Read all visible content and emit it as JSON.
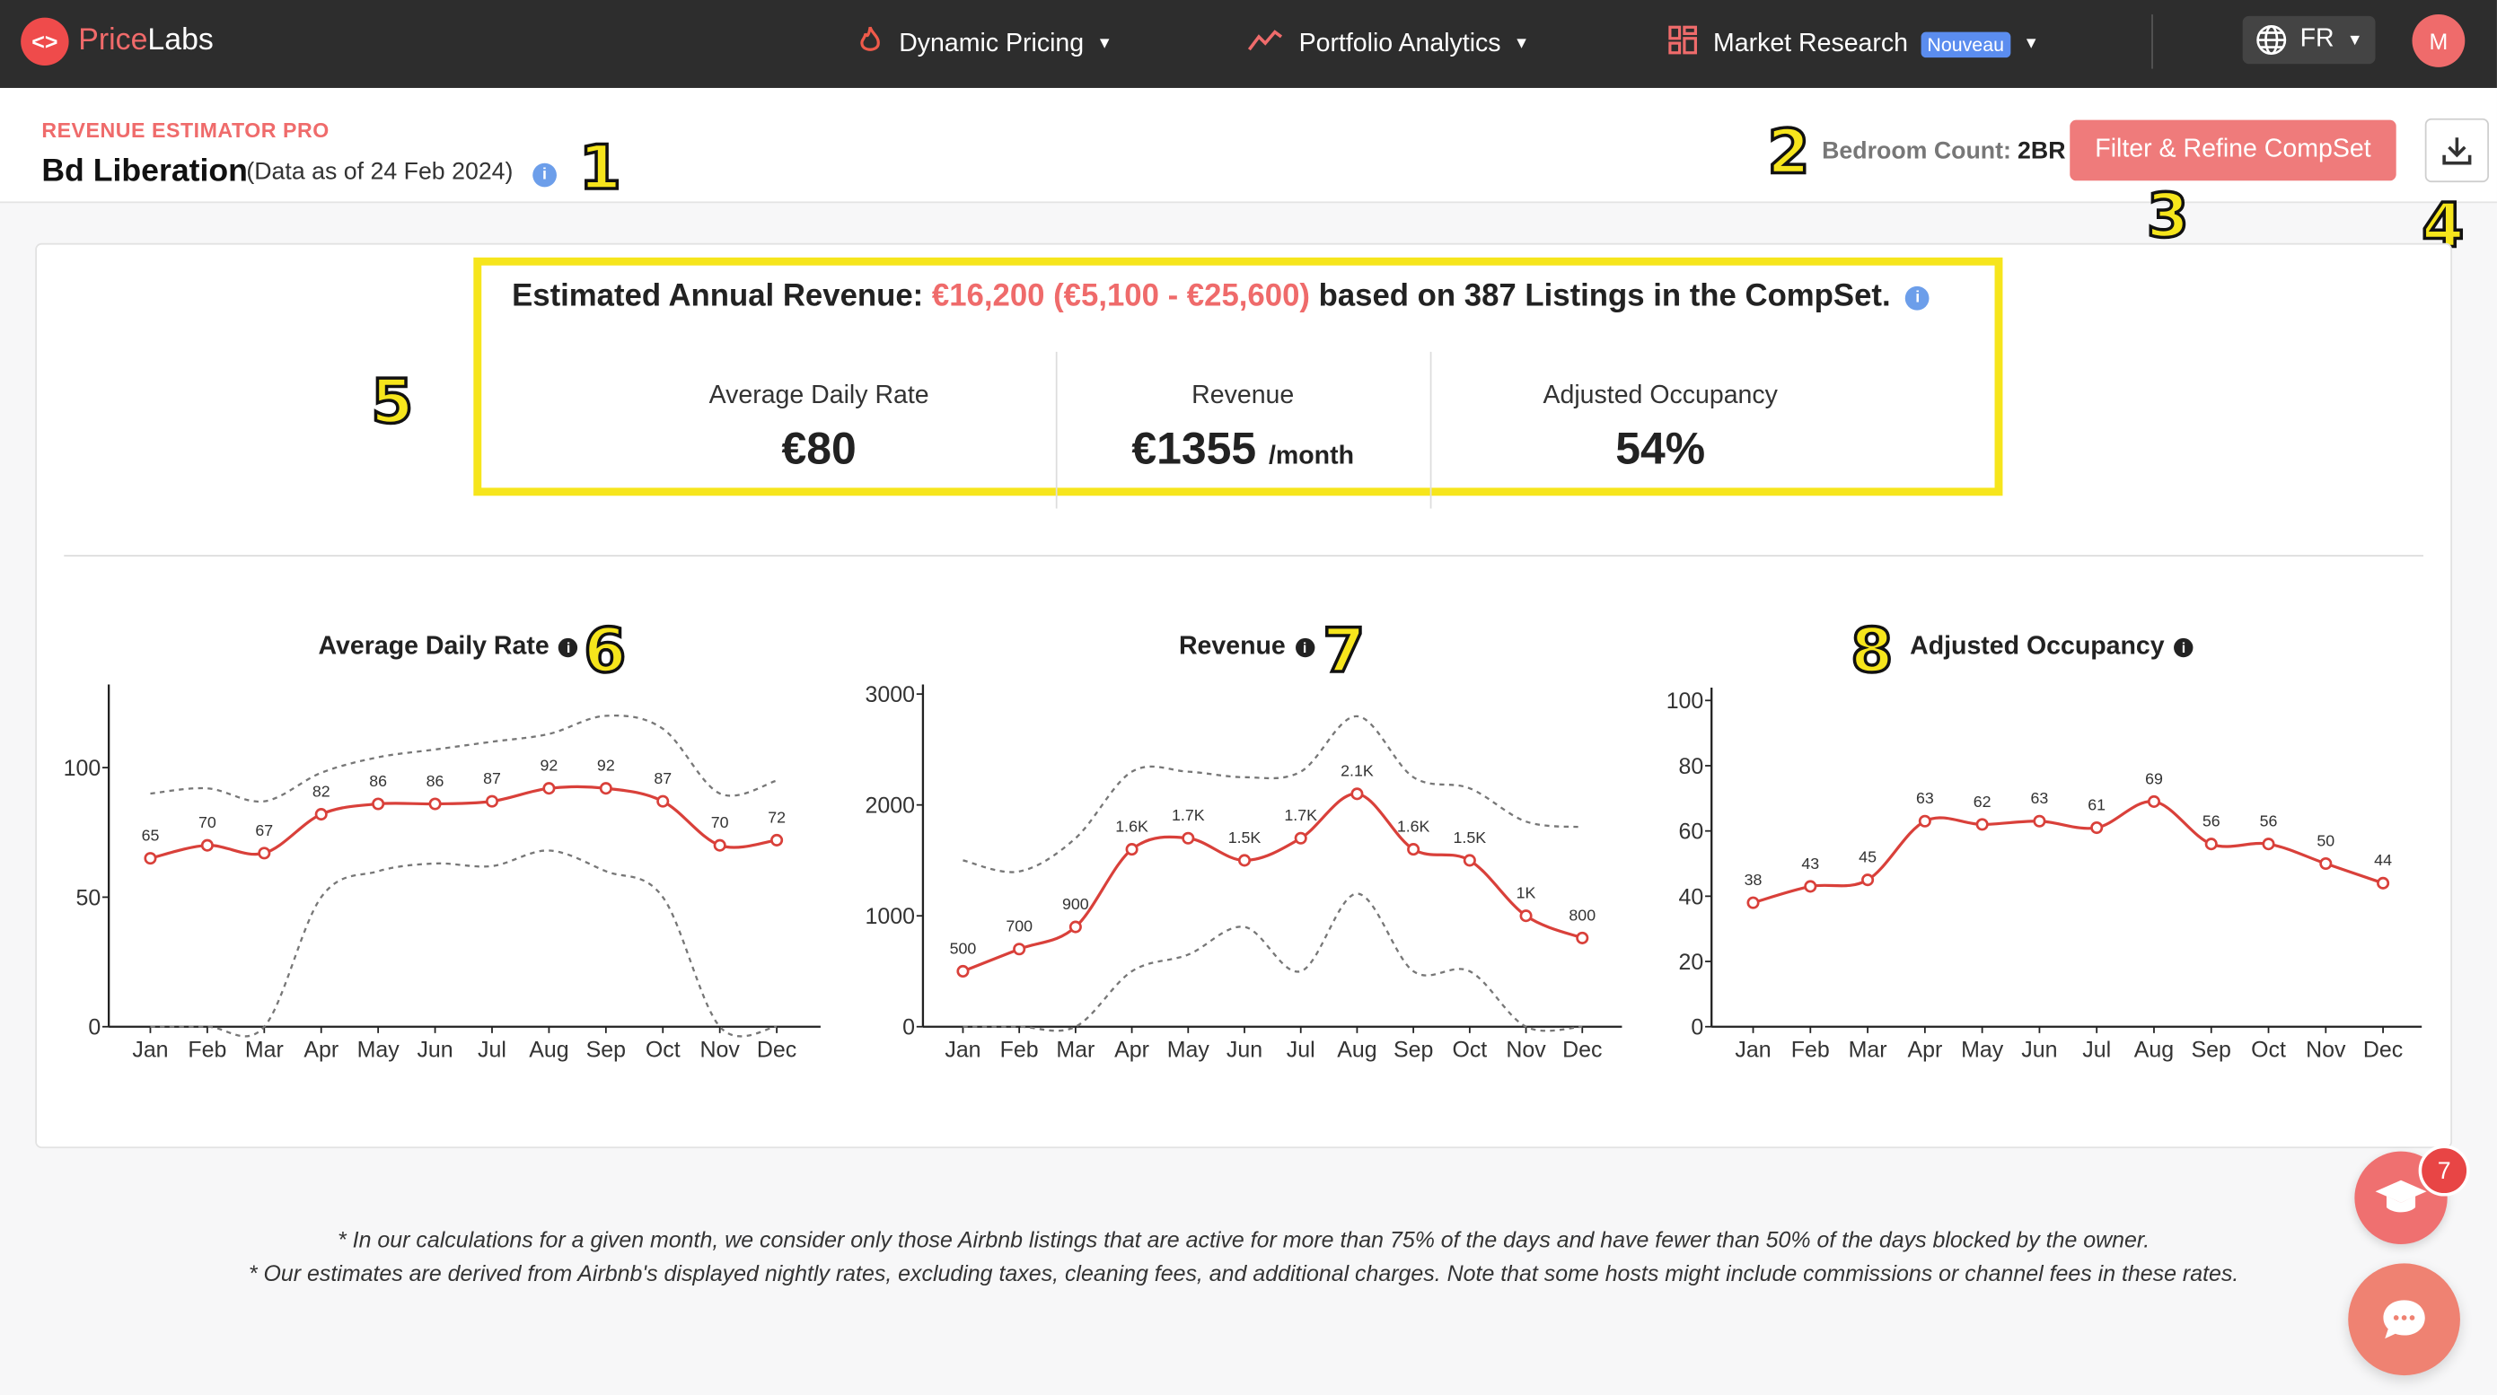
{
  "nav": {
    "brand_first": "Price",
    "brand_second": "Labs",
    "items": [
      {
        "label": "Dynamic Pricing",
        "icon": "flame-icon"
      },
      {
        "label": "Portfolio Analytics",
        "icon": "trend-icon"
      },
      {
        "label": "Market Research",
        "icon": "grid-icon",
        "badge": "Nouveau"
      }
    ],
    "language": "FR",
    "avatar_initial": "M"
  },
  "header": {
    "eyebrow": "REVENUE ESTIMATOR PRO",
    "title": "Bd Liberation",
    "data_date": "(Data as of 24 Feb 2024)",
    "bedroom_label": "Bedroom Count:",
    "bedroom_value": "2BR",
    "filter_button": "Filter & Refine CompSet"
  },
  "callouts": [
    "1",
    "2",
    "3",
    "4",
    "5",
    "6",
    "7",
    "8"
  ],
  "summary": {
    "prefix": "Estimated Annual Revenue:",
    "range": "€16,200 (€5,100 - €25,600)",
    "suffix": "based on 387 Listings in the CompSet.",
    "metrics": [
      {
        "label": "Average Daily Rate",
        "value": "€80",
        "unit": ""
      },
      {
        "label": "Revenue",
        "value": "€1355",
        "unit": "/month"
      },
      {
        "label": "Adjusted Occupancy",
        "value": "54%",
        "unit": ""
      }
    ]
  },
  "chart_data": [
    {
      "type": "line",
      "title": "Average Daily Rate",
      "categories": [
        "Jan",
        "Feb",
        "Mar",
        "Apr",
        "May",
        "Jun",
        "Jul",
        "Aug",
        "Sep",
        "Oct",
        "Nov",
        "Dec"
      ],
      "values": [
        65,
        70,
        67,
        82,
        86,
        86,
        87,
        92,
        92,
        87,
        70,
        72
      ],
      "labels": [
        "65",
        "70",
        "67",
        "82",
        "86",
        "86",
        "87",
        "92",
        "92",
        "87",
        "70",
        "72"
      ],
      "upper": [
        90,
        92,
        87,
        98,
        104,
        107,
        110,
        113,
        120,
        115,
        90,
        95
      ],
      "lower": [
        0,
        0,
        0,
        50,
        60,
        63,
        62,
        68,
        60,
        50,
        0,
        0
      ],
      "yticks": [
        0,
        50,
        100
      ],
      "ylim": [
        0,
        130
      ]
    },
    {
      "type": "line",
      "title": "Revenue",
      "categories": [
        "Jan",
        "Feb",
        "Mar",
        "Apr",
        "May",
        "Jun",
        "Jul",
        "Aug",
        "Sep",
        "Oct",
        "Nov",
        "Dec"
      ],
      "values": [
        500,
        700,
        900,
        1600,
        1700,
        1500,
        1700,
        2100,
        1600,
        1500,
        1000,
        800
      ],
      "labels": [
        "500",
        "700",
        "900",
        "1.6K",
        "1.7K",
        "1.5K",
        "1.7K",
        "2.1K",
        "1.6K",
        "1.5K",
        "1K",
        "800"
      ],
      "upper": [
        1500,
        1400,
        1700,
        2300,
        2300,
        2250,
        2300,
        2800,
        2250,
        2150,
        1850,
        1800
      ],
      "lower": [
        0,
        0,
        0,
        500,
        650,
        900,
        500,
        1200,
        500,
        500,
        0,
        0
      ],
      "yticks": [
        0,
        1000,
        2000,
        3000
      ],
      "ylim": [
        0,
        3100
      ]
    },
    {
      "type": "line",
      "title": "Adjusted Occupancy",
      "categories": [
        "Jan",
        "Feb",
        "Mar",
        "Apr",
        "May",
        "Jun",
        "Jul",
        "Aug",
        "Sep",
        "Oct",
        "Nov",
        "Dec"
      ],
      "values": [
        38,
        43,
        45,
        63,
        62,
        63,
        61,
        69,
        56,
        56,
        50,
        44
      ],
      "labels": [
        "38",
        "43",
        "45",
        "63",
        "62",
        "63",
        "61",
        "69",
        "56",
        "56",
        "50",
        "44"
      ],
      "yticks": [
        0,
        20,
        40,
        60,
        80,
        100
      ],
      "ylim": [
        0,
        102
      ]
    }
  ],
  "footnotes": [
    "* In our calculations for a given month, we consider only those Airbnb listings that are active for more than 75% of the days and have fewer than 50% of the days blocked by the owner.",
    "* Our estimates are derived from Airbnb's displayed nightly rates, excluding taxes, cleaning fees, and additional charges. Note that some hosts might include commissions or channel fees in these rates."
  ],
  "widgets": {
    "academy_count": "7"
  },
  "colors": {
    "brand": "#ef4b4b",
    "accent": "#ef6b6b",
    "highlight": "#f6e51c",
    "line": "#d9403a"
  }
}
